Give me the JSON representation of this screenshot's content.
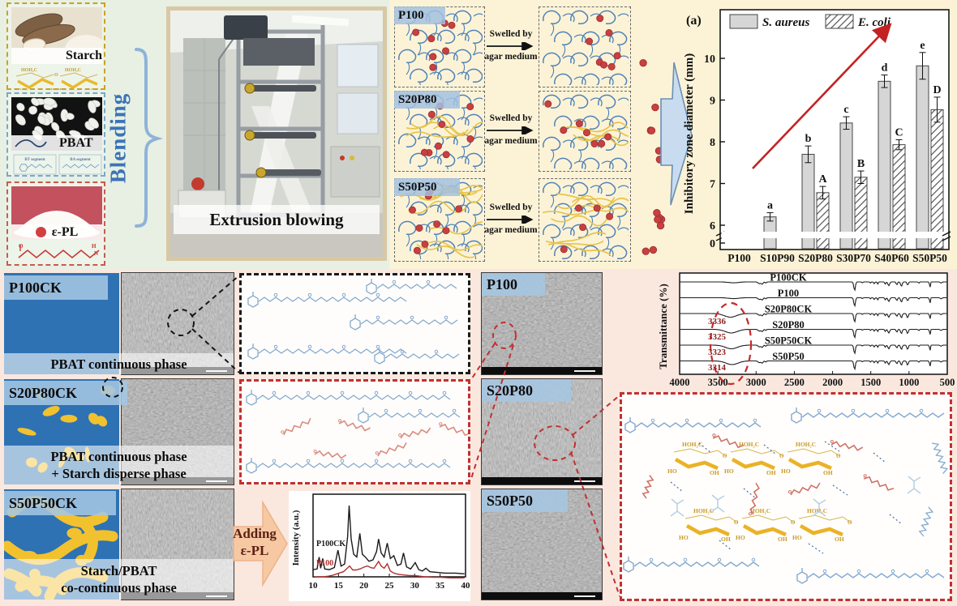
{
  "colors": {
    "pbat_blue": "#4e82b8",
    "starch_yellow": "#eebb2e",
    "epl_red": "#c43c35",
    "trend_red": "#c42222",
    "panel_green": "#e7f0e3",
    "panel_cream": "#fcf3d7",
    "panel_pink": "#fae8df",
    "schematic_blue": "#2e72b4"
  },
  "top_left": {
    "blending_label": "Blending",
    "starch": {
      "name": "Starch"
    },
    "pbat": {
      "name": "PBAT",
      "segment_labels": [
        "BT segment",
        "BA segment"
      ]
    },
    "epl": {
      "name": "ε-PL"
    },
    "extrusion_label": "Extrusion blowing"
  },
  "swelling": {
    "arrow_line1": "Swelled by",
    "arrow_line2": "agar medium",
    "rows": [
      {
        "label": "P100",
        "film_dots": 7,
        "swollen_dots": 7,
        "released_dots": 1,
        "starch_strands": 0
      },
      {
        "label": "S20P80",
        "film_dots": 9,
        "swollen_dots": 7,
        "released_dots": 5,
        "starch_strands": 4
      },
      {
        "label": "S50P50",
        "film_dots": 9,
        "swollen_dots": 5,
        "released_dots": 7,
        "starch_strands": 9
      }
    ]
  },
  "chart_data": [
    {
      "id": "inhibitory_zone",
      "type": "bar",
      "panel_label": "(a)",
      "ylabel": "Inhibitory zone diameter (mm)",
      "categories": [
        "P100",
        "S10P90",
        "S20P80",
        "S30P70",
        "S40P60",
        "S50P50"
      ],
      "yticks": [
        0,
        6,
        7,
        8,
        9,
        10
      ],
      "ylim": [
        6,
        10.5
      ],
      "axis_break": true,
      "series": [
        {
          "name": "S. aureus",
          "style": "solid-gray",
          "values": [
            null,
            6.2,
            7.7,
            8.45,
            9.45,
            9.82
          ],
          "errors": [
            null,
            0.1,
            0.2,
            0.15,
            0.15,
            0.32
          ],
          "letters": [
            null,
            "a",
            "b",
            "c",
            "d",
            "e"
          ]
        },
        {
          "name": "E. coli",
          "style": "diagonal-hatch",
          "values": [
            null,
            null,
            6.78,
            7.15,
            7.93,
            8.77
          ],
          "errors": [
            null,
            null,
            0.15,
            0.15,
            0.12,
            0.3
          ],
          "letters": [
            null,
            null,
            "A",
            "B",
            "C",
            "D"
          ]
        }
      ],
      "trend_arrow": "increasing"
    },
    {
      "id": "xrd",
      "type": "line",
      "ylabel": "Intensity (a.u.)",
      "xlabel_ticks": [
        10,
        15,
        20,
        25,
        30,
        35,
        40
      ],
      "series": [
        {
          "name": "P100CK",
          "color": "#1a1a1a",
          "points": [
            [
              10,
              8
            ],
            [
              10.8,
              9
            ],
            [
              11.2,
              26
            ],
            [
              11.5,
              10
            ],
            [
              11.9,
              24
            ],
            [
              12.3,
              9
            ],
            [
              13.2,
              8
            ],
            [
              14.2,
              11
            ],
            [
              14.9,
              36
            ],
            [
              15.5,
              13
            ],
            [
              16.2,
              16
            ],
            [
              16.8,
              55
            ],
            [
              17.1,
              100
            ],
            [
              17.5,
              52
            ],
            [
              18,
              30
            ],
            [
              18.6,
              26
            ],
            [
              19.2,
              60
            ],
            [
              19.7,
              30
            ],
            [
              20.3,
              26
            ],
            [
              21,
              20
            ],
            [
              21.8,
              22
            ],
            [
              22.5,
              34
            ],
            [
              22.9,
              52
            ],
            [
              23.4,
              32
            ],
            [
              24,
              26
            ],
            [
              24.6,
              46
            ],
            [
              25.2,
              24
            ],
            [
              25.9,
              28
            ],
            [
              26.6,
              14
            ],
            [
              27.3,
              16
            ],
            [
              27.8,
              32
            ],
            [
              28.4,
              12
            ],
            [
              29.2,
              9
            ],
            [
              30.1,
              18
            ],
            [
              30.8,
              8
            ],
            [
              31.5,
              6
            ],
            [
              32.2,
              10
            ],
            [
              33,
              5
            ],
            [
              34.5,
              4
            ],
            [
              36,
              3
            ],
            [
              38,
              3
            ],
            [
              39.8,
              2
            ]
          ]
        },
        {
          "name": "P100",
          "color": "#b03030",
          "points": [
            [
              10,
              2
            ],
            [
              11,
              3
            ],
            [
              12,
              3
            ],
            [
              13,
              4
            ],
            [
              14,
              6
            ],
            [
              15,
              9
            ],
            [
              16,
              12
            ],
            [
              17.2,
              22
            ],
            [
              17.8,
              15
            ],
            [
              18.5,
              15
            ],
            [
              19.3,
              17
            ],
            [
              20,
              20
            ],
            [
              20.7,
              22
            ],
            [
              21.4,
              19
            ],
            [
              22,
              18
            ],
            [
              22.9,
              30
            ],
            [
              23.4,
              22
            ],
            [
              24,
              18
            ],
            [
              24.6,
              26
            ],
            [
              25.2,
              13
            ],
            [
              26,
              9
            ],
            [
              27,
              7
            ],
            [
              28,
              6
            ],
            [
              29,
              5
            ],
            [
              30,
              5
            ],
            [
              31,
              4
            ],
            [
              32,
              3
            ],
            [
              33.5,
              2
            ],
            [
              35,
              2
            ],
            [
              37,
              1
            ],
            [
              39,
              1
            ],
            [
              39.8,
              1
            ]
          ]
        }
      ]
    },
    {
      "id": "ftir",
      "type": "line",
      "ylabel": "Transmittance (%)",
      "xlabel_ticks": [
        4000,
        3500,
        3000,
        2500,
        2000,
        1500,
        1000,
        500
      ],
      "curves": [
        {
          "label": "P100CK",
          "oh_wavenumber": null
        },
        {
          "label": "P100",
          "oh_wavenumber": null
        },
        {
          "label": "S20P80CK",
          "oh_wavenumber": 3336
        },
        {
          "label": "S20P80",
          "oh_wavenumber": 3325
        },
        {
          "label": "S50P50CK",
          "oh_wavenumber": 3323
        },
        {
          "label": "S50P50",
          "oh_wavenumber": 3314
        }
      ],
      "highlight_wavenumbers": [
        3336,
        3325,
        3323,
        3314
      ]
    }
  ],
  "morphology": {
    "rows": [
      {
        "label": "P100CK",
        "caption_lines": [
          "PBAT continuous phase",
          ""
        ]
      },
      {
        "label": "S20P80CK",
        "caption_lines": [
          "PBAT continuous phase",
          "+ Starch disperse phase"
        ]
      },
      {
        "label": "S50P50CK",
        "caption_lines": [
          "Starch/PBAT",
          "co-continuous phase"
        ]
      }
    ]
  },
  "sem_epl": {
    "labels": [
      "P100",
      "S20P80",
      "S50P50"
    ]
  },
  "adding_arrow": {
    "line1": "Adding",
    "line2": "ε-PL"
  },
  "structure_labels": {
    "ch2oh": "HOH₂C",
    "ho": "HO",
    "oh": "OH",
    "o": "O",
    "h": "H",
    "n": "N"
  }
}
